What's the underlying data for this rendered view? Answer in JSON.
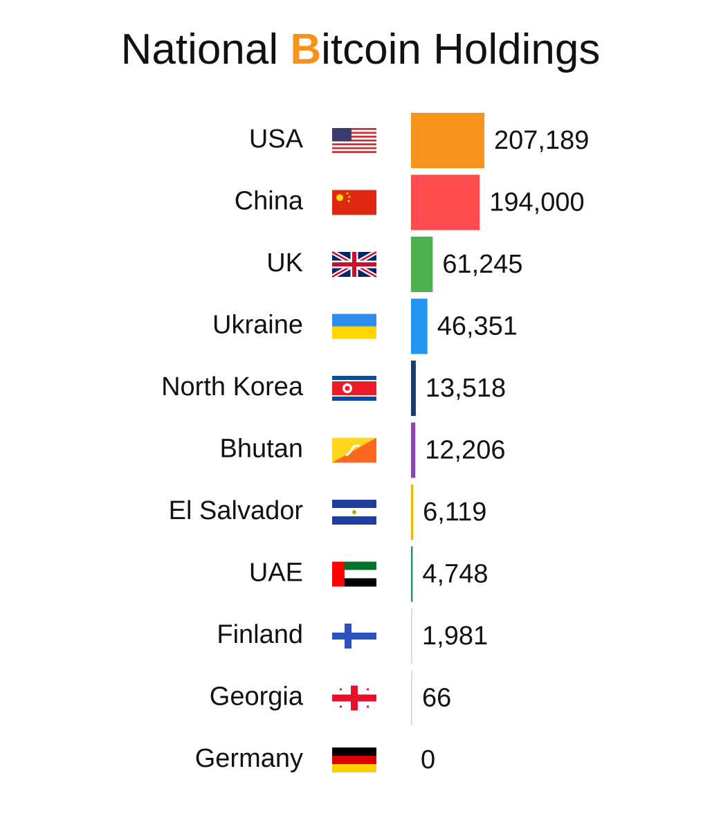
{
  "chart_data": {
    "type": "hbar",
    "title": "National Bitcoin Holdings",
    "title_accent_color": "#f7931a",
    "categories": [
      "USA",
      "China",
      "UK",
      "Ukraine",
      "North Korea",
      "Bhutan",
      "El Salvador",
      "UAE",
      "Finland",
      "Georgia",
      "Germany"
    ],
    "values": [
      207189,
      194000,
      61245,
      46351,
      13518,
      12206,
      6119,
      4748,
      1981,
      66,
      0
    ],
    "value_labels": [
      "207,189",
      "194,000",
      "61,245",
      "46,351",
      "13,518",
      "12,206",
      "6,119",
      "4,748",
      "1,981",
      "66",
      "0"
    ],
    "colors": [
      "#f7931a",
      "#ff4b4b",
      "#4caf50",
      "#2196f3",
      "#1a3a6e",
      "#8e44ad",
      "#f0b400",
      "#2e8b57",
      "#dddddd",
      "#dddddd",
      "#dddddd"
    ]
  }
}
